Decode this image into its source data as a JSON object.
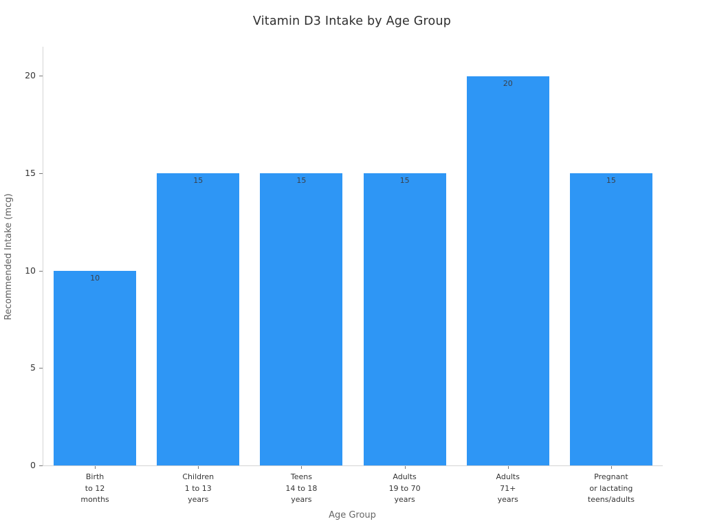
{
  "chart_data": {
    "type": "bar",
    "title": "Vitamin D3 Intake by Age Group",
    "xlabel": "Age Group",
    "ylabel": "Recommended Intake (mcg)",
    "categories": [
      "Birth\nto 12\nmonths",
      "Children\n1 to 13\nyears",
      "Teens\n14 to 18\nyears",
      "Adults\n19 to 70\nyears",
      "Adults\n71+\nyears",
      "Pregnant\nor lactating\nteens/adults"
    ],
    "values": [
      10,
      15,
      15,
      15,
      20,
      15
    ],
    "value_labels": [
      "10",
      "15",
      "15",
      "15",
      "20",
      "15"
    ],
    "yticks": [
      0,
      5,
      10,
      15,
      20
    ],
    "ylim": [
      0,
      21.5
    ],
    "grid": false,
    "legend": "none",
    "bar_color": "#2e96f5",
    "value_label_color": "#3a4049",
    "axis_line_color": "#d4d4d4",
    "tick_color": "#767676"
  }
}
